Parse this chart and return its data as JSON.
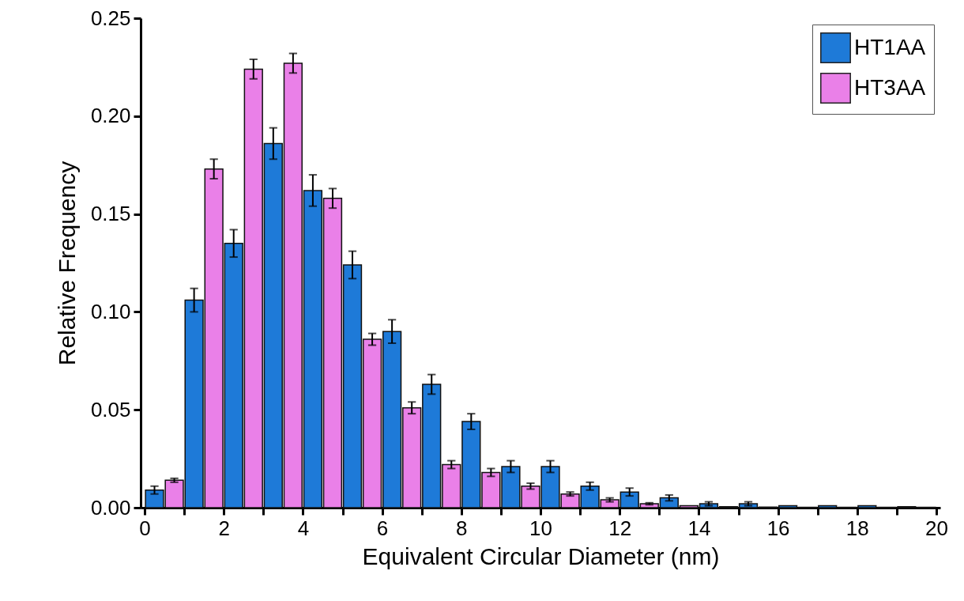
{
  "chart_data": {
    "type": "bar",
    "xlabel": "Equivalent Circular Diameter (nm)",
    "ylabel": "Relative Frequency",
    "xlim": [
      0,
      20
    ],
    "xticks": [
      0,
      {
        "value": 1,
        "label": null
      },
      2,
      {
        "value": 3,
        "label": null
      },
      4,
      {
        "value": 5,
        "label": null
      },
      6,
      {
        "value": 7,
        "label": null
      },
      8,
      {
        "value": 9,
        "label": null
      },
      10,
      {
        "value": 11,
        "label": null
      },
      12,
      {
        "value": 13,
        "label": null
      },
      14,
      {
        "value": 15,
        "label": null
      },
      16,
      {
        "value": 17,
        "label": null
      },
      18,
      {
        "value": 19,
        "label": null
      },
      20
    ],
    "ylim": [
      0,
      0.25
    ],
    "yticks": [
      {
        "value": 0,
        "label": "0.00"
      },
      {
        "value": 0.05,
        "label": "0.05"
      },
      {
        "value": 0.1,
        "label": "0.10"
      },
      {
        "value": 0.15,
        "label": "0.15"
      },
      {
        "value": 0.2,
        "label": "0.20"
      },
      {
        "value": 0.25,
        "label": "0.25"
      }
    ],
    "legend": "top right",
    "grid": false,
    "series": [
      {
        "name": "HT1AA",
        "color": "#1e7ad8",
        "x": [
          0.25,
          1.25,
          2.25,
          3.25,
          4.25,
          5.25,
          6.25,
          7.25,
          8.25,
          9.25,
          10.25,
          11.25,
          12.25,
          13.25,
          14.25,
          15.25,
          16.25,
          17.25,
          18.25,
          19.25
        ],
        "values": [
          0.009,
          0.106,
          0.135,
          0.186,
          0.162,
          0.124,
          0.09,
          0.063,
          0.044,
          0.021,
          0.021,
          0.011,
          0.008,
          0.005,
          0.002,
          0.002,
          0.001,
          0.001,
          0.001,
          0.0005
        ],
        "errors": [
          0.002,
          0.006,
          0.007,
          0.008,
          0.008,
          0.007,
          0.006,
          0.005,
          0.004,
          0.003,
          0.003,
          0.002,
          0.002,
          0.0015,
          0.001,
          0.001,
          null,
          null,
          null,
          null
        ]
      },
      {
        "name": "HT3AA",
        "color": "#ea80e8",
        "x": [
          0.75,
          1.75,
          2.75,
          3.75,
          4.75,
          5.75,
          6.75,
          7.75,
          8.75,
          9.75,
          10.75,
          11.75,
          12.75,
          13.75,
          14.75,
          15.75,
          16.75,
          17.75,
          18.75,
          19.75
        ],
        "values": [
          0.014,
          0.173,
          0.224,
          0.227,
          0.158,
          0.086,
          0.051,
          0.022,
          0.018,
          0.011,
          0.007,
          0.004,
          0.002,
          0.001,
          0.0005,
          0.0003,
          0.0002,
          0.0002,
          0.0002,
          0.0002
        ],
        "errors": [
          0.001,
          0.005,
          0.005,
          0.005,
          0.005,
          0.003,
          0.003,
          0.002,
          0.002,
          0.0015,
          0.001,
          0.001,
          0.0005,
          null,
          null,
          null,
          null,
          null,
          null,
          null
        ]
      }
    ]
  }
}
